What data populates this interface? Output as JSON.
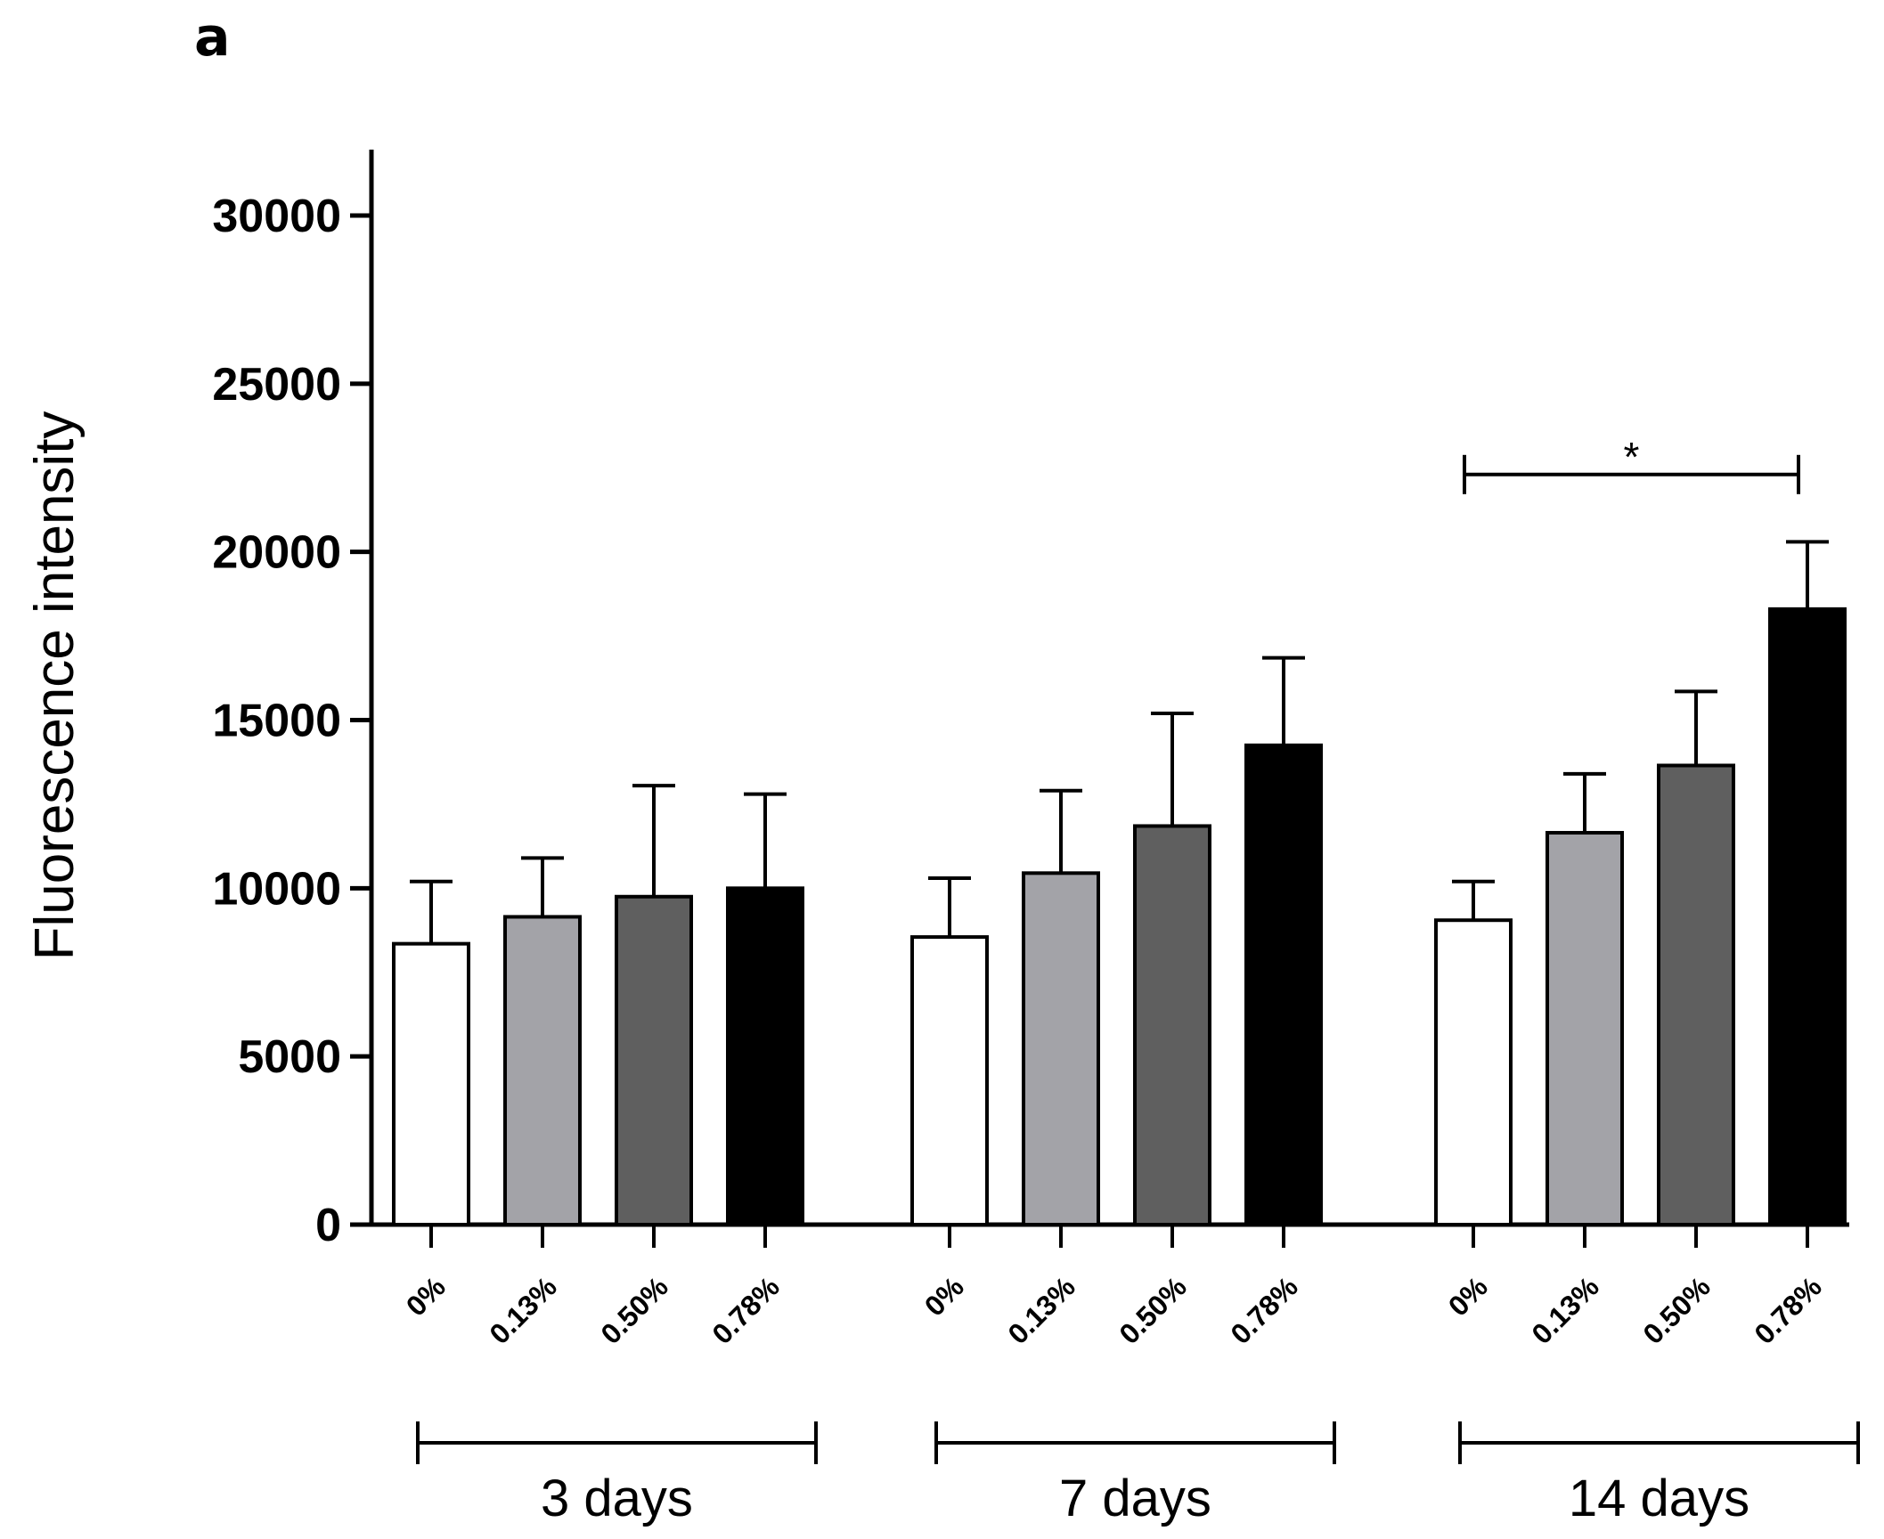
{
  "panel_label": "a",
  "chart_data": {
    "type": "bar",
    "title": "",
    "xlabel": "",
    "ylabel": "Fluorescence intensity",
    "ylim": [
      0,
      32000
    ],
    "yticks": [
      0,
      5000,
      10000,
      15000,
      20000,
      25000,
      30000
    ],
    "ytick_labels": [
      "0",
      "5000",
      "10000",
      "15000",
      "20000",
      "25000",
      "30000"
    ],
    "grid": false,
    "legend": "none",
    "categories": [
      "0%",
      "0.13%",
      "0.50%",
      "0.78%"
    ],
    "category_colors": [
      "#ffffff",
      "#a3a3a8",
      "#5f5f5f",
      "#000000"
    ],
    "groups": [
      {
        "label": "3 days",
        "values": [
          8350,
          9150,
          9750,
          10000
        ],
        "errors": [
          1850,
          1750,
          3300,
          2800
        ]
      },
      {
        "label": "7 days",
        "values": [
          8550,
          10450,
          11850,
          14250
        ],
        "errors": [
          1750,
          2450,
          3350,
          2600
        ]
      },
      {
        "label": "14 days",
        "values": [
          9050,
          11650,
          13650,
          18300
        ],
        "errors": [
          1150,
          1750,
          2200,
          2000
        ]
      }
    ],
    "annotations": [
      {
        "text": "*",
        "group": "14 days",
        "from": "0%",
        "to": "0.78%",
        "y": 22300
      }
    ]
  }
}
